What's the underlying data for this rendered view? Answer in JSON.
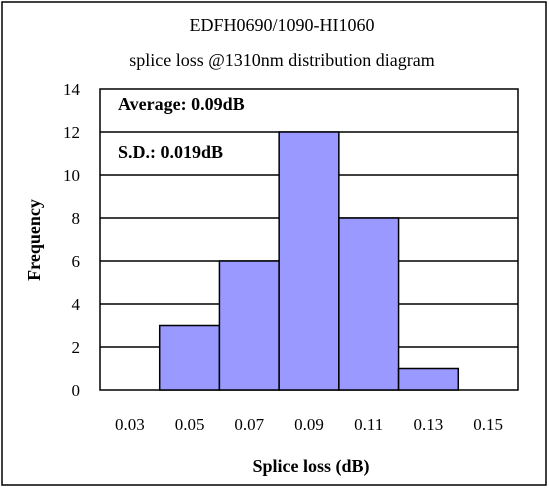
{
  "chart_data": {
    "type": "bar",
    "title": [
      "EDFH0690/1090-HI1060",
      "splice loss @1310nm distribution diagram"
    ],
    "xlabel": "Splice loss (dB)",
    "ylabel": "Frequency",
    "categories": [
      "0.03",
      "0.05",
      "0.07",
      "0.09",
      "0.11",
      "0.13",
      "0.15"
    ],
    "values": [
      0,
      3,
      6,
      12,
      8,
      1,
      0
    ],
    "ylim": [
      0,
      14
    ],
    "yticks": [
      "0",
      "2",
      "4",
      "6",
      "8",
      "10",
      "12",
      "14"
    ],
    "grid": true,
    "bar_color": "#9999ff",
    "annotations": [
      "Average: 0.09dB",
      "S.D.: 0.019dB"
    ]
  }
}
